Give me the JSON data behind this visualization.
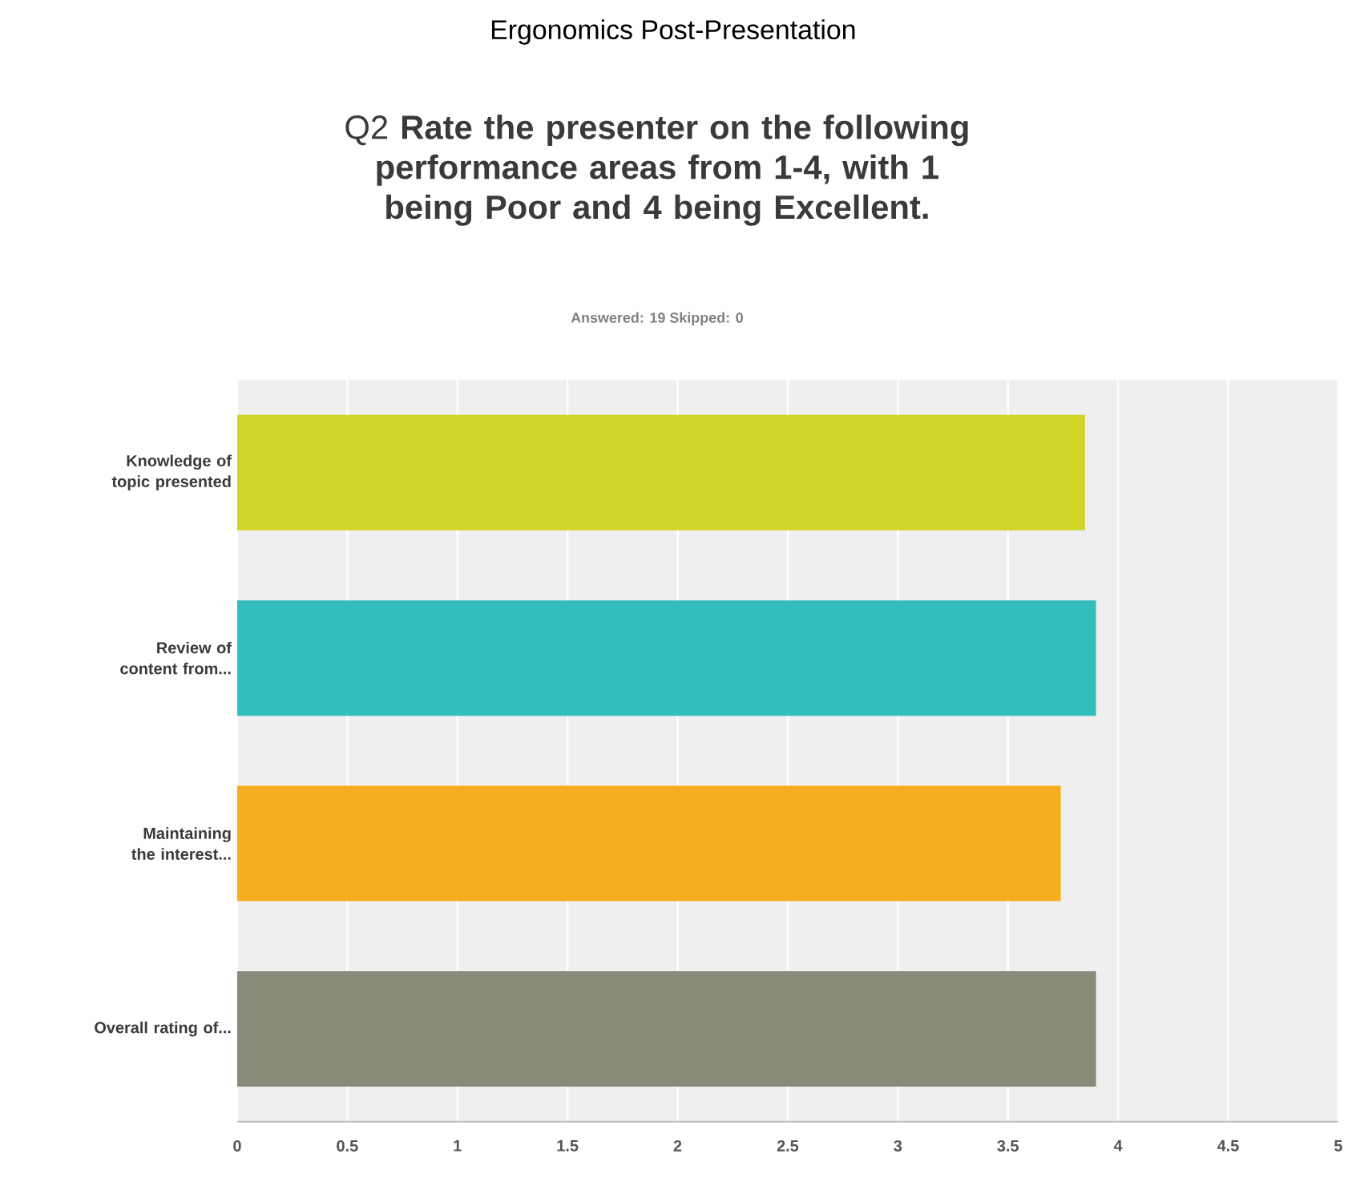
{
  "chart_data": {
    "type": "bar",
    "orientation": "horizontal",
    "title": "Ergonomics Post-Presentation",
    "subtitle": "Q2 **Rate the presenter on the following performance areas from 1-4, with 1 being Poor and 4 being Excellent.**",
    "annotations": [
      "Answered: 19    Skipped: 0"
    ],
    "categories": [
      "Knowledge of topic presented",
      "Review of content from...",
      "Maintaining the interest...",
      "Overall rating of..."
    ],
    "values": [
      3.85,
      3.9,
      3.74,
      3.9
    ],
    "colors": [
      "#cfd427",
      "#33bdbd",
      "#f5ae20",
      "#8a8a7a"
    ],
    "xlim": [
      0,
      5
    ],
    "xticks": [
      0,
      0.5,
      1,
      1.5,
      2,
      2.5,
      3,
      3.5,
      4,
      4.5,
      5
    ],
    "grid": "x"
  }
}
